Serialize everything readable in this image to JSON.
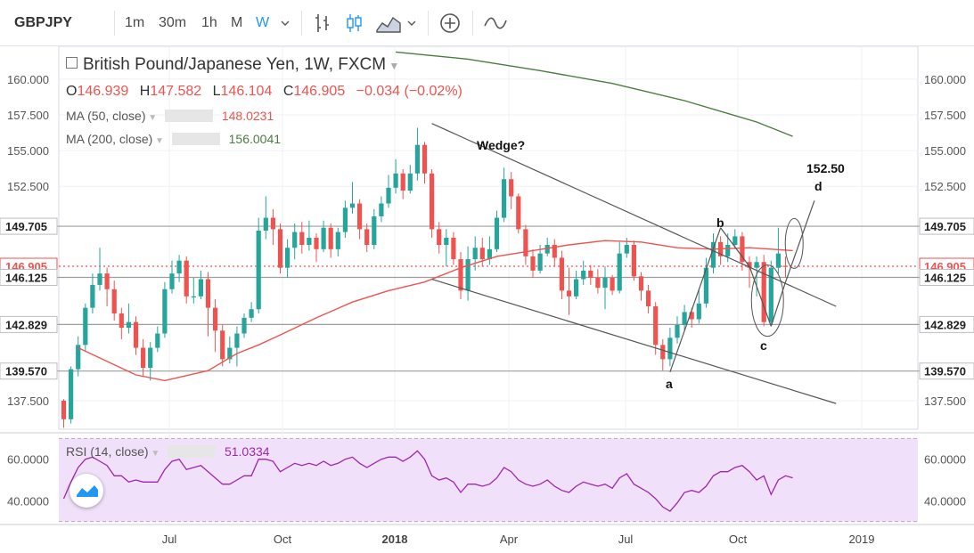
{
  "toolbar": {
    "symbol": "GBPJPY",
    "intervals": [
      "1m",
      "30m",
      "1h",
      "M",
      "W"
    ],
    "active_interval": "W",
    "icons": [
      "dropdown-icon",
      "bar-style-icon",
      "candle-style-icon",
      "indicators-icon",
      "add-icon",
      "compare-icon"
    ]
  },
  "legend": {
    "title": "British Pound/Japanese Yen, 1W, FXCM",
    "ohlc": [
      {
        "k": "O",
        "v": "146.939"
      },
      {
        "k": "H",
        "v": "147.582"
      },
      {
        "k": "L",
        "v": "146.104"
      },
      {
        "k": "C",
        "v": "146.905"
      }
    ],
    "change": "−0.034 (−0.02%)",
    "ma50_label": "MA (50, close)",
    "ma50_value": "148.0231",
    "ma200_label": "MA (200, close)",
    "ma200_value": "156.0041",
    "rsi_label": "RSI (14, close)",
    "rsi_value": "51.0334"
  },
  "annotations": {
    "wedge": "Wedge?",
    "target": "152.50",
    "a": "a",
    "b": "b",
    "c": "c",
    "d": "d"
  },
  "colors": {
    "up": "#26a69a",
    "down": "#ef5350",
    "ma50": "#ef5350",
    "ma200": "#4a7c3f",
    "rsi": "#9c27b0",
    "rsi_fill": "#f1e0fa"
  },
  "chart_data": {
    "type": "candlestick",
    "symbol": "GBPJPY",
    "timeframe": "1W",
    "x_tick_labels": [
      "Jul",
      "Oct",
      "2018",
      "Apr",
      "Jul",
      "Oct",
      "2019"
    ],
    "y_tick_labels": [
      "160.000",
      "157.500",
      "155.000",
      "152.500",
      "137.500"
    ],
    "ylim": [
      135.5,
      162.3
    ],
    "price_levels": [
      {
        "label": "149.705",
        "value": 149.705,
        "style": "line"
      },
      {
        "label": "146.905",
        "value": 146.905,
        "style": "current"
      },
      {
        "label": "146.125",
        "value": 146.125,
        "style": "line"
      },
      {
        "label": "142.829",
        "value": 142.829,
        "style": "line"
      },
      {
        "label": "139.570",
        "value": 139.57,
        "style": "line"
      }
    ],
    "candles": [
      [
        137.5,
        136.2,
        137.6,
        135.6
      ],
      [
        136.2,
        139.7,
        139.9,
        135.9
      ],
      [
        139.7,
        141.4,
        142.0,
        139.2
      ],
      [
        141.4,
        144.0,
        144.3,
        141.0
      ],
      [
        144.0,
        145.6,
        146.4,
        143.6
      ],
      [
        145.6,
        146.4,
        148.2,
        145.2
      ],
      [
        146.4,
        145.3,
        146.8,
        144.1
      ],
      [
        145.3,
        143.6,
        145.9,
        143.1
      ],
      [
        143.6,
        142.6,
        144.0,
        141.8
      ],
      [
        142.6,
        143.0,
        144.3,
        142.2
      ],
      [
        143.0,
        141.2,
        143.4,
        140.7
      ],
      [
        141.2,
        139.8,
        141.8,
        139.2
      ],
      [
        139.8,
        141.2,
        141.6,
        138.9
      ],
      [
        141.2,
        142.2,
        142.7,
        140.9
      ],
      [
        142.2,
        145.3,
        145.8,
        141.9
      ],
      [
        145.3,
        146.4,
        147.3,
        145.0
      ],
      [
        146.4,
        147.3,
        147.7,
        145.8
      ],
      [
        147.3,
        144.8,
        147.6,
        144.3
      ],
      [
        144.8,
        144.8,
        146.1,
        144.3
      ],
      [
        144.8,
        146.0,
        146.6,
        144.6
      ],
      [
        146.0,
        144.0,
        146.5,
        142.0
      ],
      [
        144.0,
        142.4,
        144.6,
        140.9
      ],
      [
        142.4,
        140.4,
        142.8,
        139.9
      ],
      [
        140.4,
        141.2,
        142.0,
        140.1
      ],
      [
        141.2,
        142.2,
        142.7,
        139.9
      ],
      [
        142.2,
        143.3,
        143.6,
        141.9
      ],
      [
        143.3,
        143.9,
        144.4,
        143.0
      ],
      [
        143.9,
        149.4,
        150.3,
        143.6
      ],
      [
        149.4,
        150.3,
        151.8,
        148.8
      ],
      [
        150.3,
        149.5,
        150.9,
        148.4
      ],
      [
        149.5,
        146.8,
        149.9,
        146.4
      ],
      [
        146.8,
        148.2,
        148.8,
        146.1
      ],
      [
        148.2,
        149.3,
        149.9,
        147.4
      ],
      [
        149.3,
        148.4,
        150.0,
        147.8
      ],
      [
        148.4,
        148.9,
        150.1,
        148.0
      ],
      [
        148.9,
        148.1,
        149.2,
        147.2
      ],
      [
        148.1,
        149.6,
        150.1,
        147.9
      ],
      [
        149.6,
        148.1,
        149.9,
        147.5
      ],
      [
        148.1,
        149.3,
        149.6,
        147.6
      ],
      [
        149.3,
        151.0,
        151.5,
        148.9
      ],
      [
        151.0,
        151.3,
        152.8,
        150.6
      ],
      [
        151.3,
        149.5,
        151.6,
        148.8
      ],
      [
        149.5,
        148.4,
        149.9,
        147.9
      ],
      [
        148.4,
        150.4,
        150.9,
        148.1
      ],
      [
        150.4,
        151.3,
        151.8,
        150.0
      ],
      [
        151.3,
        152.4,
        153.3,
        151.0
      ],
      [
        152.4,
        153.4,
        154.4,
        152.0
      ],
      [
        153.4,
        152.2,
        153.7,
        151.6
      ],
      [
        152.2,
        153.4,
        154.0,
        152.0
      ],
      [
        153.4,
        155.4,
        156.6,
        152.9
      ],
      [
        155.4,
        153.4,
        155.6,
        152.7
      ],
      [
        153.4,
        149.5,
        153.7,
        148.9
      ],
      [
        149.5,
        148.4,
        150.0,
        147.8
      ],
      [
        148.4,
        148.9,
        149.5,
        146.9
      ],
      [
        148.9,
        147.4,
        149.3,
        147.0
      ],
      [
        147.4,
        145.2,
        147.9,
        144.6
      ],
      [
        145.2,
        147.4,
        148.3,
        144.5
      ],
      [
        147.4,
        148.2,
        149.0,
        146.6
      ],
      [
        148.2,
        147.4,
        148.9,
        146.9
      ],
      [
        147.4,
        148.1,
        149.0,
        147.0
      ],
      [
        148.1,
        150.3,
        150.8,
        147.9
      ],
      [
        150.3,
        153.0,
        153.8,
        150.0
      ],
      [
        153.0,
        151.8,
        153.5,
        150.9
      ],
      [
        151.8,
        149.5,
        152.0,
        149.2
      ],
      [
        149.5,
        147.6,
        149.8,
        147.0
      ],
      [
        147.6,
        146.6,
        148.1,
        146.1
      ],
      [
        146.6,
        147.8,
        148.4,
        146.4
      ],
      [
        147.8,
        148.4,
        148.9,
        147.6
      ],
      [
        148.4,
        147.5,
        148.8,
        146.9
      ],
      [
        147.5,
        145.2,
        148.0,
        144.6
      ],
      [
        145.2,
        144.8,
        146.8,
        143.5
      ],
      [
        144.8,
        146.0,
        146.6,
        144.6
      ],
      [
        146.0,
        146.6,
        147.3,
        145.6
      ],
      [
        146.6,
        146.1,
        147.0,
        145.6
      ],
      [
        146.1,
        145.4,
        146.7,
        145.0
      ],
      [
        145.4,
        146.1,
        146.9,
        143.9
      ],
      [
        146.1,
        145.2,
        146.3,
        144.9
      ],
      [
        145.2,
        147.8,
        148.6,
        145.0
      ],
      [
        147.8,
        148.4,
        148.9,
        147.5
      ],
      [
        148.4,
        146.2,
        148.7,
        145.9
      ],
      [
        146.2,
        145.2,
        146.5,
        144.5
      ],
      [
        145.2,
        144.1,
        145.6,
        143.6
      ],
      [
        144.1,
        141.4,
        144.4,
        140.7
      ],
      [
        141.4,
        140.4,
        141.8,
        139.6
      ],
      [
        140.4,
        141.9,
        142.6,
        139.9
      ],
      [
        141.9,
        142.8,
        143.4,
        141.5
      ],
      [
        142.8,
        143.7,
        144.2,
        142.4
      ],
      [
        143.7,
        143.2,
        144.0,
        142.6
      ],
      [
        143.2,
        144.3,
        145.3,
        142.9
      ],
      [
        144.3,
        146.8,
        147.5,
        144.0
      ],
      [
        146.8,
        148.6,
        149.2,
        146.4
      ],
      [
        148.6,
        147.6,
        149.0,
        147.0
      ],
      [
        147.6,
        148.4,
        149.2,
        147.2
      ],
      [
        148.4,
        149.0,
        149.5,
        148.1
      ],
      [
        149.0,
        147.2,
        149.3,
        146.6
      ],
      [
        147.2,
        146.8,
        147.6,
        145.4
      ],
      [
        146.8,
        147.2,
        147.6,
        144.8
      ],
      [
        147.2,
        143.0,
        147.7,
        142.7
      ],
      [
        143.0,
        146.8,
        147.3,
        142.8
      ],
      [
        146.8,
        147.8,
        149.6,
        146.4
      ],
      [
        146.939,
        146.905,
        147.582,
        146.104
      ]
    ],
    "ma50": [
      [
        2,
        141.2
      ],
      [
        10,
        139.3
      ],
      [
        14,
        138.9
      ],
      [
        20,
        139.6
      ],
      [
        24,
        140.8
      ],
      [
        27,
        141.4
      ],
      [
        30,
        142.1
      ],
      [
        35,
        143.3
      ],
      [
        40,
        144.4
      ],
      [
        45,
        145.2
      ],
      [
        50,
        145.8
      ],
      [
        55,
        146.8
      ],
      [
        60,
        147.6
      ],
      [
        65,
        148.0
      ],
      [
        70,
        148.4
      ],
      [
        75,
        148.7
      ],
      [
        80,
        148.6
      ],
      [
        85,
        148.2
      ],
      [
        90,
        148.1
      ],
      [
        95,
        148.2
      ],
      [
        101,
        148.0
      ]
    ],
    "ma200": [
      [
        46,
        161.9
      ],
      [
        56,
        161.4
      ],
      [
        66,
        160.6
      ],
      [
        76,
        159.7
      ],
      [
        86,
        158.5
      ],
      [
        96,
        157.0
      ],
      [
        101,
        156.0
      ]
    ],
    "trend_lines": [
      {
        "from": [
          51,
          156.9
        ],
        "to": [
          107,
          144.1
        ]
      },
      {
        "from": [
          51,
          146.0
        ],
        "to": [
          107,
          137.3
        ]
      },
      {
        "from": [
          84,
          139.5
        ],
        "to": [
          91,
          149.6
        ]
      },
      {
        "from": [
          91,
          149.6
        ],
        "to": [
          95,
          146.9
        ]
      },
      {
        "from": [
          95,
          146.9
        ],
        "to": [
          98,
          142.7
        ]
      },
      {
        "from": [
          98,
          142.7
        ],
        "to": [
          100,
          145.8
        ]
      },
      {
        "from": [
          100,
          145.8
        ],
        "to": [
          104,
          151.5
        ]
      }
    ],
    "rsi": {
      "name": "RSI (14, close)",
      "ylim": [
        29,
        71
      ],
      "y_tick_labels": [
        "60.0000",
        "40.0000"
      ],
      "band": [
        30,
        70
      ],
      "values": [
        41,
        49,
        56,
        60,
        61,
        59,
        57,
        52,
        52,
        49,
        50,
        49,
        49,
        49,
        55,
        59,
        60,
        55,
        56,
        57,
        54,
        51,
        48,
        48,
        50,
        52,
        52,
        60,
        60,
        59,
        54,
        56,
        58,
        57,
        58,
        57,
        59,
        57,
        58,
        60,
        61,
        58,
        56,
        58,
        60,
        61,
        61,
        59,
        61,
        64,
        60,
        52,
        50,
        51,
        49,
        44,
        48,
        48,
        47,
        48,
        51,
        56,
        54,
        50,
        48,
        47,
        48,
        50,
        47,
        45,
        44,
        47,
        49,
        48,
        47,
        48,
        46,
        51,
        53,
        48,
        46,
        44,
        41,
        37,
        35,
        39,
        44,
        45,
        44,
        47,
        52,
        54,
        54,
        56,
        57,
        54,
        50,
        52,
        43,
        50,
        52,
        51.0334
      ]
    }
  }
}
